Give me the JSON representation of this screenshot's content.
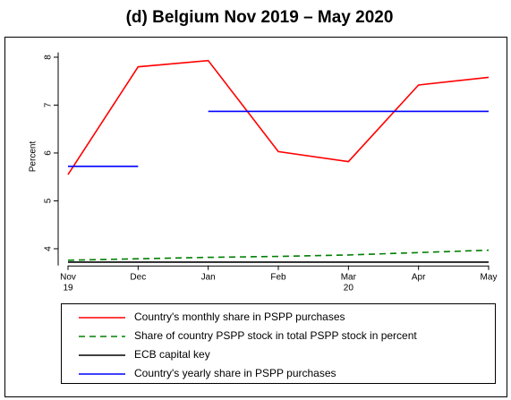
{
  "chart_data": {
    "type": "line",
    "title": "(d) Belgium Nov 2019 – May 2020",
    "y_label": "Percent",
    "categories": [
      "Nov",
      "Dec",
      "Jan",
      "Feb",
      "Mar",
      "Apr",
      "May"
    ],
    "category_years": [
      {
        "index": 0,
        "label": "19"
      },
      {
        "index": 4,
        "label": "20"
      }
    ],
    "ylim": [
      3.65,
      8.1
    ],
    "yticks": [
      4,
      5,
      6,
      7,
      8
    ],
    "series": [
      {
        "name": "Country's monthly share in PSPP purchases",
        "color": "#ff0000",
        "dash": "solid",
        "values": [
          5.55,
          7.8,
          7.93,
          6.03,
          5.82,
          7.42,
          7.58
        ]
      },
      {
        "name": "Share of country PSPP stock in total PSPP stock in percent",
        "color": "#008000",
        "dash": "dashed",
        "values": [
          3.76,
          3.79,
          3.82,
          3.84,
          3.87,
          3.92,
          3.97
        ]
      },
      {
        "name": "ECB capital key",
        "color": "#000000",
        "dash": "solid",
        "values": [
          3.72,
          3.72,
          3.72,
          3.72,
          3.72,
          3.72,
          3.72
        ]
      },
      {
        "name": "Country's yearly share in PSPP purchases",
        "color": "#0000ff",
        "dash": "solid",
        "drawstyle": "level",
        "values": [
          5.72,
          5.72,
          6.87,
          6.87,
          6.87,
          6.87,
          6.87
        ]
      }
    ]
  }
}
